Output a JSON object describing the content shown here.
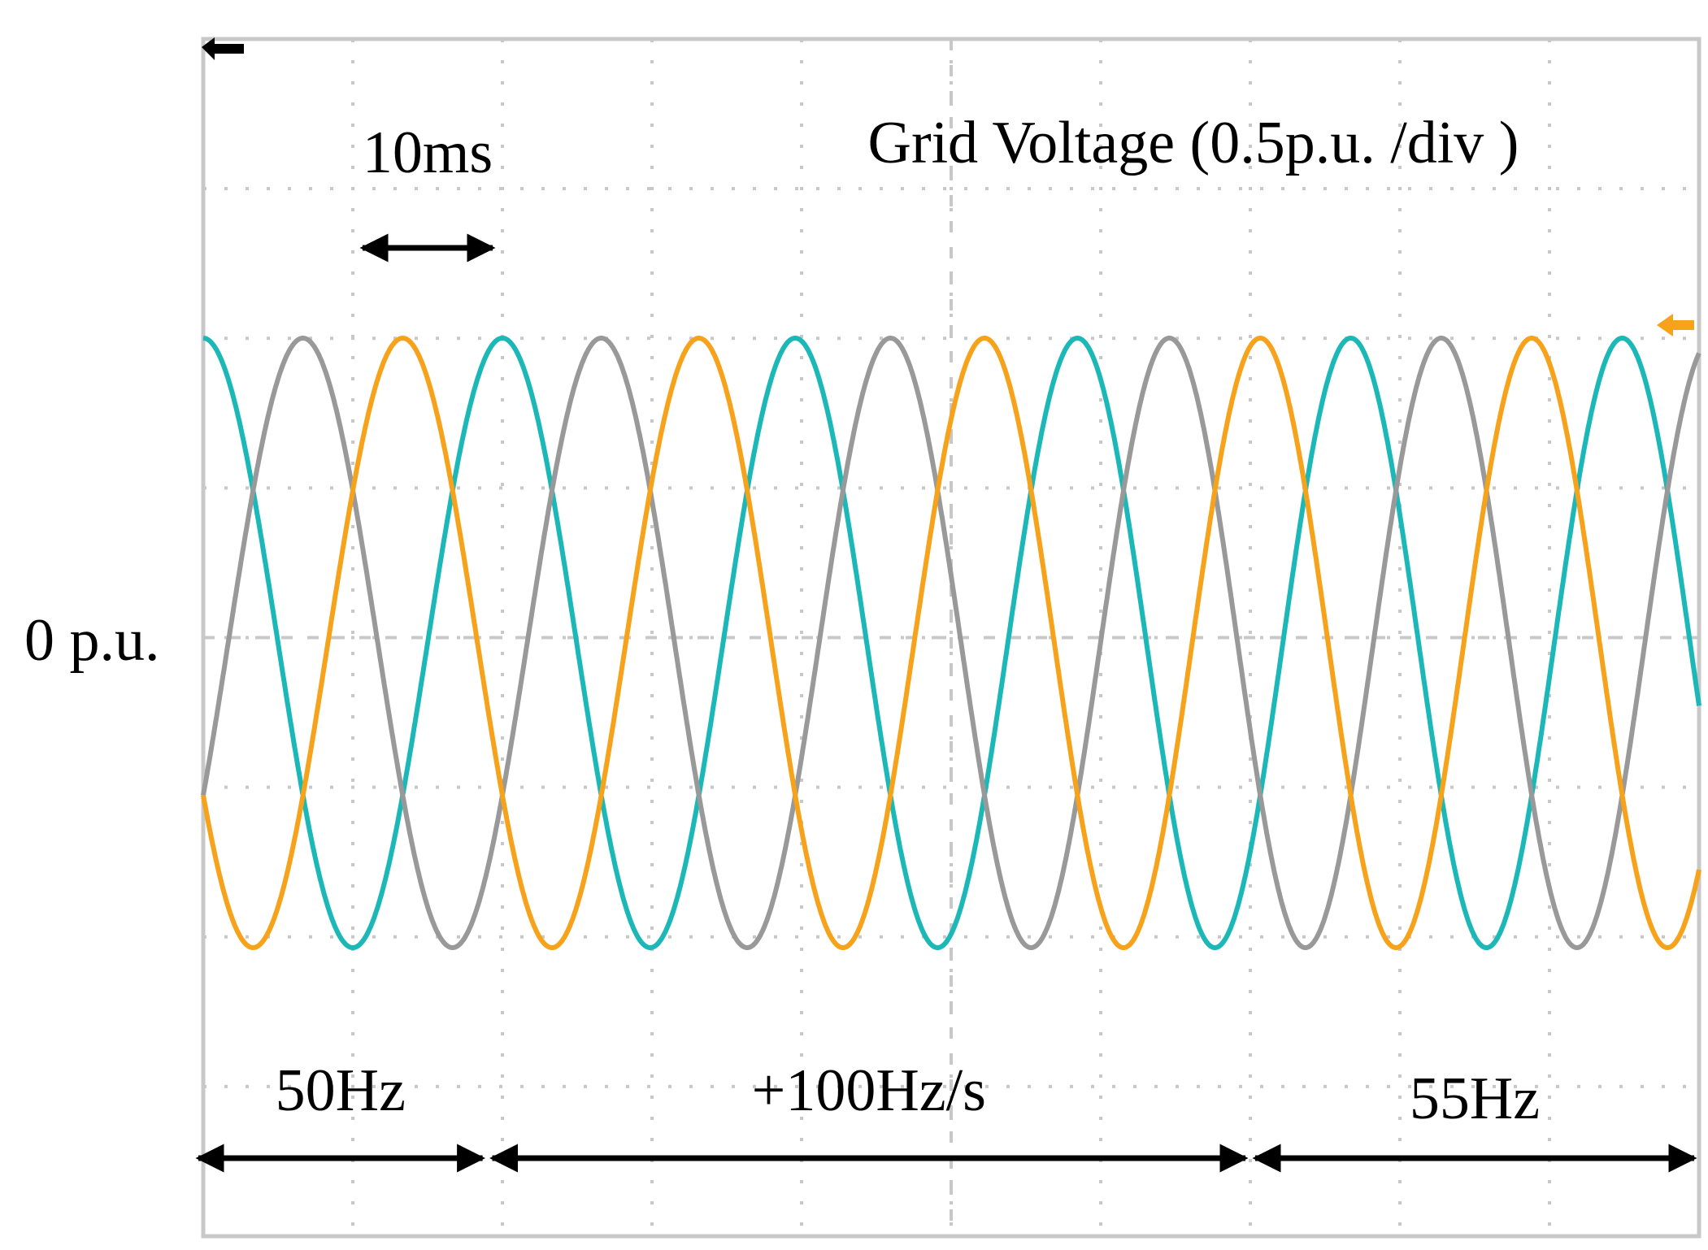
{
  "chart_data": {
    "type": "line",
    "title": "Grid Voltage (0.5p.u. /div )",
    "zero_label": "0 p.u.",
    "time_per_div_ms": 10,
    "volts_per_div_pu": 0.5,
    "divisions": {
      "x": 10,
      "y": 8
    },
    "grid": true,
    "x_range_ms": [
      0,
      100
    ],
    "y_range_pu": [
      -2,
      2
    ],
    "annotations": {
      "scale_bar": {
        "label": "10ms",
        "from_ms": 10,
        "to_ms": 20
      },
      "segments": [
        {
          "label": "50Hz",
          "from_ms": 0,
          "to_ms": 19
        },
        {
          "label": "+100Hz/s",
          "from_ms": 19,
          "to_ms": 70
        },
        {
          "label": "55Hz",
          "from_ms": 70,
          "to_ms": 100
        }
      ]
    },
    "signal": {
      "amplitude_pu": 1,
      "f0_hz": 50,
      "ramp_start_ms": 19,
      "ramp_end_ms": 70,
      "ramp_rate_hz_per_s": 100,
      "f1_hz": 55
    },
    "series": [
      {
        "color": "#1cb8b8",
        "phase_deg": 90
      },
      {
        "color": "#999999",
        "phase_deg": -30
      },
      {
        "color": "#f7a21b",
        "phase_deg": -150
      }
    ]
  }
}
